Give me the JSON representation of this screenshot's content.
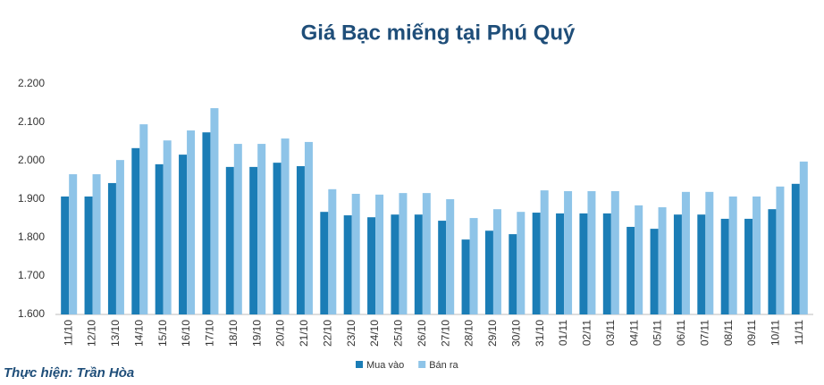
{
  "chart_data": {
    "type": "bar",
    "title": "Giá Bạc miếng tại Phú Quý",
    "categories": [
      "11/10",
      "12/10",
      "13/10",
      "14/10",
      "15/10",
      "16/10",
      "17/10",
      "18/10",
      "19/10",
      "20/10",
      "21/10",
      "22/10",
      "23/10",
      "24/10",
      "25/10",
      "26/10",
      "27/10",
      "28/10",
      "29/10",
      "30/10",
      "31/10",
      "01/11",
      "02/11",
      "03/11",
      "04/11",
      "05/11",
      "06/11",
      "07/11",
      "08/11",
      "09/11",
      "10/11",
      "11/11"
    ],
    "series": [
      {
        "name": "Mua vào",
        "color": "#1b7db6",
        "values": [
          1907,
          1907,
          1942,
          2033,
          1991,
          2016,
          2074,
          1984,
          1984,
          1995,
          1986,
          1867,
          1858,
          1853,
          1860,
          1860,
          1844,
          1795,
          1818,
          1809,
          1865,
          1863,
          1863,
          1863,
          1828,
          1823,
          1860,
          1860,
          1849,
          1849,
          1874,
          1940
        ]
      },
      {
        "name": "Bán ra",
        "color": "#8ec4e8",
        "values": [
          1965,
          1965,
          2002,
          2095,
          2053,
          2079,
          2137,
          2044,
          2044,
          2058,
          2049,
          1926,
          1914,
          1912,
          1916,
          1916,
          1900,
          1851,
          1874,
          1867,
          1923,
          1921,
          1921,
          1921,
          1884,
          1879,
          1919,
          1919,
          1907,
          1907,
          1933,
          1998
        ]
      }
    ],
    "ylim": [
      1600,
      2200
    ],
    "yticks": [
      {
        "value": 1600,
        "label": "1.600"
      },
      {
        "value": 1700,
        "label": "1.700"
      },
      {
        "value": 1800,
        "label": "1.800"
      },
      {
        "value": 1900,
        "label": "1.900"
      },
      {
        "value": 2000,
        "label": "2.000"
      },
      {
        "value": 2100,
        "label": "2.100"
      },
      {
        "value": 2200,
        "label": "2.200"
      }
    ],
    "grid": false,
    "legend": "bottom",
    "footer": "Thực hiện: Trần Hòa"
  }
}
